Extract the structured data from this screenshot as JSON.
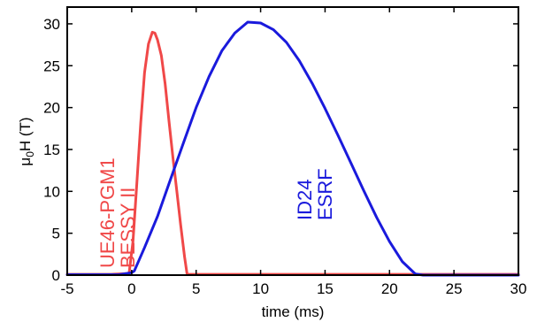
{
  "chart_data": {
    "type": "line",
    "title": "",
    "xlabel": "time (ms)",
    "ylabel_main": "μ",
    "ylabel_sub": "0",
    "ylabel_rest": "H (T)",
    "xlim": [
      -5,
      30
    ],
    "ylim": [
      0,
      32
    ],
    "xticks": [
      -5,
      0,
      5,
      10,
      15,
      20,
      25,
      30
    ],
    "yticks": [
      0,
      5,
      10,
      15,
      20,
      25,
      30
    ],
    "grid": false,
    "legend": "none",
    "series": [
      {
        "color": "#f04848",
        "x": [
          -5,
          -1.6,
          -0.2,
          0.1,
          0.4,
          0.7,
          1.0,
          1.3,
          1.6,
          1.8,
          2.0,
          2.3,
          2.6,
          2.9,
          3.2,
          3.5,
          3.8,
          4.1,
          4.3,
          4.6,
          30
        ],
        "y": [
          0.1,
          0.1,
          0.2,
          4.0,
          11.0,
          18.2,
          24.2,
          27.6,
          29.0,
          28.9,
          28.1,
          26.2,
          22.8,
          18.3,
          14.0,
          10.0,
          6.0,
          2.2,
          0.1,
          0.1,
          0.1
        ]
      },
      {
        "color": "#1a1adc",
        "x": [
          -5,
          -1.0,
          0.0,
          0.2,
          1,
          2,
          3,
          4,
          5,
          6,
          7,
          8,
          9,
          10,
          11,
          12,
          13,
          14,
          15,
          16,
          17,
          18,
          19,
          20,
          21,
          22,
          22.6,
          30
        ],
        "y": [
          0.05,
          0.05,
          0.3,
          0.5,
          3.3,
          7.0,
          11.4,
          15.7,
          20.0,
          23.7,
          26.8,
          28.9,
          30.2,
          30.1,
          29.3,
          27.8,
          25.6,
          22.9,
          19.9,
          16.7,
          13.4,
          10.1,
          6.9,
          4.0,
          1.6,
          0.15,
          0.0,
          0.0
        ]
      }
    ],
    "annotations": [
      {
        "lines": [
          "UE46-PGM1",
          "BESSY II"
        ],
        "color": "#f04848"
      },
      {
        "lines": [
          "ID24",
          "ESRF"
        ],
        "color": "#1a1adc"
      }
    ]
  }
}
